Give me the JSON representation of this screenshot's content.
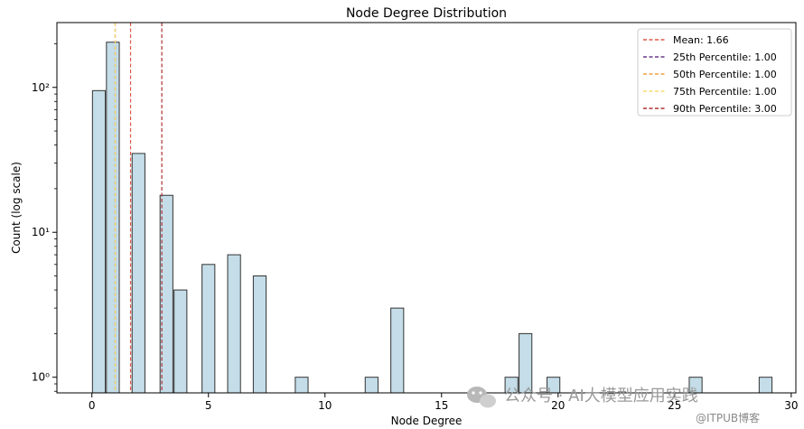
{
  "chart_data": {
    "type": "bar",
    "title": "Node Degree Distribution",
    "xlabel": "Node Degree",
    "ylabel": "Count (log scale)",
    "xlim": [
      -1.5,
      30.2
    ],
    "ylim": [
      0.78,
      280
    ],
    "yscale": "log",
    "bar_width_degree": 0.55,
    "x_ticks": [
      0,
      5,
      10,
      15,
      20,
      25,
      30
    ],
    "x_tick_labels": [
      "0",
      "5",
      "10",
      "15",
      "20",
      "25",
      "30"
    ],
    "y_ticks": [
      1,
      10,
      100
    ],
    "y_tick_labels": [
      "10⁰",
      "10¹",
      "10²"
    ],
    "bars": [
      {
        "x": 0.3,
        "value": 95
      },
      {
        "x": 0.9,
        "value": 205
      },
      {
        "x": 2.0,
        "value": 35
      },
      {
        "x": 3.2,
        "value": 18
      },
      {
        "x": 3.8,
        "value": 4
      },
      {
        "x": 5.0,
        "value": 6
      },
      {
        "x": 6.1,
        "value": 7
      },
      {
        "x": 7.2,
        "value": 5
      },
      {
        "x": 9.0,
        "value": 1
      },
      {
        "x": 12.0,
        "value": 1
      },
      {
        "x": 13.1,
        "value": 3
      },
      {
        "x": 18.0,
        "value": 1
      },
      {
        "x": 18.6,
        "value": 2
      },
      {
        "x": 19.8,
        "value": 1
      },
      {
        "x": 25.9,
        "value": 1
      },
      {
        "x": 28.9,
        "value": 1
      }
    ],
    "vlines": [
      {
        "label": "Mean: 1.66",
        "x": 1.66,
        "color": "#e0584a"
      },
      {
        "label": "25th Percentile: 1.00",
        "x": 1.0,
        "color": "#6c3a8a"
      },
      {
        "label": "50th Percentile: 1.00",
        "x": 1.0,
        "color": "#f0a040"
      },
      {
        "label": "75th Percentile: 1.00",
        "x": 1.0,
        "color": "#f7dc6f"
      },
      {
        "label": "90th Percentile: 3.00",
        "x": 3.0,
        "color": "#b03030"
      }
    ],
    "legend_position": "top-right",
    "bar_fill": "#c4dde8",
    "bar_edge": "#333333",
    "grid": false
  },
  "watermark": {
    "main": "公众号 · AI大模型应用实践",
    "sub": "@ITPUB博客"
  }
}
